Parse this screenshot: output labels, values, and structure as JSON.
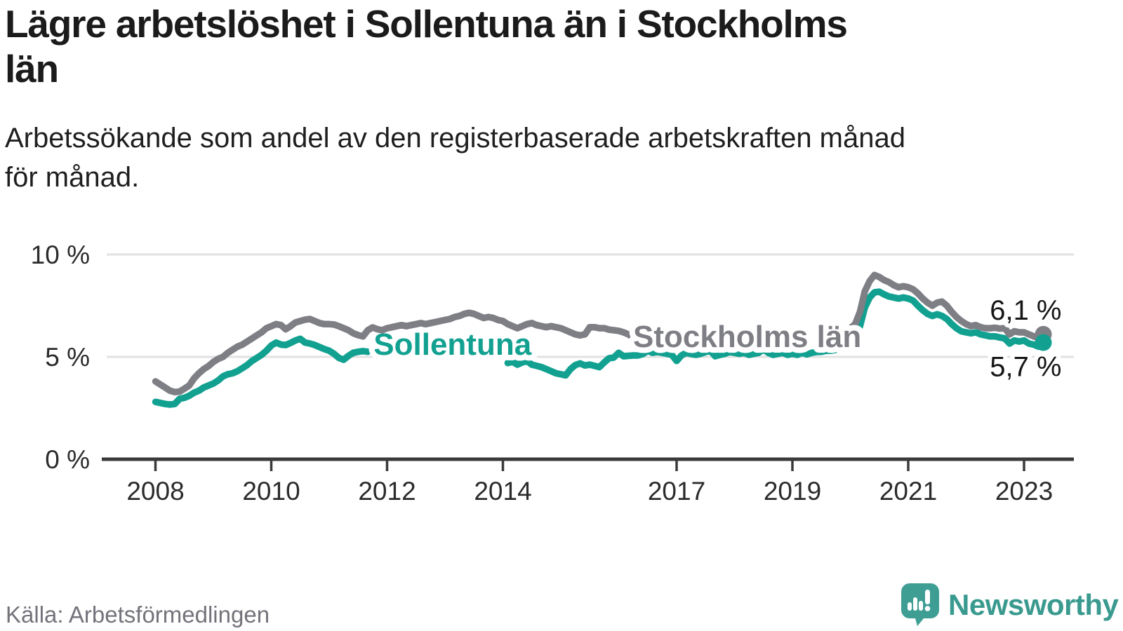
{
  "title": {
    "text": "Lägre arbetslöshet i Sollentuna än i Stockholms län",
    "lines": [
      "Lägre arbetslöshet i Sollentuna än i Stockholms",
      "län"
    ]
  },
  "subtitle": {
    "text": "Arbetssökande som andel av den registerbaserade arbetskraften månad för månad.",
    "lines": [
      "Arbetssökande som andel av den registerbaserade arbetskraften månad",
      "för månad."
    ]
  },
  "source": "Källa: Arbetsförmedlingen",
  "brand": {
    "name": "Newsworthy",
    "color": "#3a9a8f",
    "icon": "newsworthy-speech-bubble-chart-icon"
  },
  "colors": {
    "sollentuna": "#12a191",
    "stockholm": "#7e7e85",
    "axis": "#3a3a3a",
    "grid": "#e2e2e2",
    "tick_text": "#2b2b2b",
    "value_text": "#161616"
  },
  "chart_data": {
    "type": "line",
    "title": "Lägre arbetslöshet i Sollentuna än i Stockholms län",
    "xlabel": "",
    "ylabel": "Arbetssökande som andel av den registerbaserade arbetskraften",
    "unit": "%",
    "x_start_year": 2008,
    "x_step_months": 1,
    "x_axis_ticks": [
      2008,
      2010,
      2012,
      2014,
      2017,
      2019,
      2021,
      2023
    ],
    "y_axis_ticks": [
      0,
      5,
      10
    ],
    "y_axis_tick_labels": [
      "0 %",
      "5 %",
      "10 %"
    ],
    "ylim": [
      0,
      10.8
    ],
    "grid": "horizontal",
    "legend_position": "inline-labels",
    "inline_labels": [
      {
        "text": "Sollentuna",
        "series": "Sollentuna",
        "x_year": 2013.13,
        "value": 5.1
      },
      {
        "text": "Stockholms län",
        "series": "Stockholms län",
        "x_year": 2018.22,
        "value": 5.48
      }
    ],
    "series": [
      {
        "name": "Stockholms län",
        "color": "#7e7e85",
        "end_value": 6.1,
        "end_label": "6,1 %",
        "end_label_position": "above",
        "values": [
          3.8,
          3.65,
          3.5,
          3.35,
          3.28,
          3.3,
          3.45,
          3.6,
          3.95,
          4.2,
          4.4,
          4.55,
          4.75,
          4.9,
          5.0,
          5.2,
          5.35,
          5.5,
          5.6,
          5.75,
          5.9,
          6.05,
          6.2,
          6.4,
          6.5,
          6.6,
          6.55,
          6.35,
          6.5,
          6.68,
          6.75,
          6.82,
          6.85,
          6.75,
          6.65,
          6.6,
          6.6,
          6.58,
          6.5,
          6.4,
          6.3,
          6.15,
          6.06,
          6.0,
          6.3,
          6.44,
          6.35,
          6.3,
          6.4,
          6.45,
          6.5,
          6.55,
          6.5,
          6.55,
          6.6,
          6.65,
          6.6,
          6.65,
          6.7,
          6.75,
          6.8,
          6.85,
          6.95,
          7.0,
          7.1,
          7.15,
          7.1,
          7.0,
          6.9,
          6.95,
          6.9,
          6.8,
          6.75,
          6.6,
          6.5,
          6.4,
          6.5,
          6.6,
          6.65,
          6.55,
          6.5,
          6.45,
          6.5,
          6.45,
          6.4,
          6.3,
          6.2,
          6.1,
          6.05,
          6.1,
          6.45,
          6.45,
          6.4,
          6.4,
          6.33,
          6.3,
          6.27,
          6.2,
          6.1,
          5.95,
          null,
          null,
          null,
          null,
          null,
          null,
          null,
          null,
          null,
          null,
          null,
          null,
          null,
          null,
          null,
          null,
          null,
          null,
          null,
          null,
          null,
          null,
          null,
          null,
          null,
          null,
          null,
          null,
          null,
          null,
          null,
          null,
          null,
          null,
          null,
          null,
          null,
          null,
          null,
          null,
          null,
          null,
          null,
          null,
          6.4,
          6.6,
          7.2,
          8.2,
          8.7,
          9.0,
          8.9,
          8.75,
          8.65,
          8.5,
          8.4,
          8.45,
          8.4,
          8.3,
          8.1,
          7.85,
          7.65,
          7.5,
          7.65,
          7.7,
          7.5,
          7.2,
          6.95,
          6.75,
          6.6,
          6.5,
          6.55,
          6.45,
          6.4,
          6.4,
          6.42,
          6.38,
          6.4,
          6.1,
          6.25,
          6.2,
          6.2,
          6.1,
          6.0,
          5.92,
          6.1
        ]
      },
      {
        "name": "Sollentuna",
        "color": "#12a191",
        "end_value": 5.7,
        "end_label": "5,7 %",
        "end_label_position": "below",
        "values": [
          2.8,
          2.75,
          2.7,
          2.67,
          2.7,
          2.95,
          3.0,
          3.1,
          3.25,
          3.35,
          3.5,
          3.6,
          3.7,
          3.85,
          4.05,
          4.15,
          4.2,
          4.3,
          4.45,
          4.6,
          4.8,
          4.95,
          5.1,
          5.3,
          5.55,
          5.7,
          5.6,
          5.58,
          5.68,
          5.8,
          5.88,
          5.7,
          5.65,
          5.58,
          5.48,
          5.38,
          5.3,
          5.15,
          4.95,
          4.86,
          5.05,
          5.2,
          5.25,
          5.28,
          5.25,
          null,
          null,
          null,
          null,
          null,
          null,
          null,
          null,
          null,
          null,
          null,
          null,
          null,
          null,
          null,
          null,
          null,
          null,
          null,
          null,
          null,
          null,
          null,
          null,
          null,
          null,
          null,
          null,
          4.7,
          4.76,
          4.62,
          4.73,
          4.79,
          4.62,
          4.56,
          4.5,
          4.4,
          4.3,
          4.2,
          4.15,
          4.1,
          4.4,
          4.6,
          4.68,
          4.58,
          4.62,
          4.56,
          4.5,
          4.73,
          4.93,
          4.97,
          5.2,
          5.03,
          5.05,
          5.07,
          5.07,
          5.14,
          5.3,
          5.2,
          5.24,
          5.2,
          5.15,
          5.1,
          4.8,
          5.07,
          5.2,
          5.14,
          5.1,
          5.15,
          5.24,
          5.3,
          5.03,
          5.1,
          5.15,
          5.24,
          5.2,
          5.15,
          5.2,
          5.1,
          5.15,
          5.2,
          5.37,
          5.2,
          5.1,
          5.15,
          5.2,
          5.1,
          5.15,
          5.1,
          5.2,
          5.12,
          5.2,
          5.24,
          5.25,
          5.3,
          5.3,
          5.35,
          5.4,
          5.45,
          5.55,
          5.9,
          6.5,
          7.4,
          7.9,
          8.15,
          8.18,
          8.05,
          7.95,
          7.9,
          7.85,
          7.9,
          7.85,
          7.75,
          7.5,
          7.28,
          7.1,
          7.0,
          7.08,
          7.0,
          6.85,
          6.6,
          6.4,
          6.25,
          6.2,
          6.15,
          6.2,
          6.1,
          6.05,
          6.0,
          6.0,
          5.95,
          5.9,
          5.65,
          5.8,
          5.75,
          5.8,
          5.65,
          5.6,
          5.5,
          5.7
        ]
      }
    ]
  }
}
